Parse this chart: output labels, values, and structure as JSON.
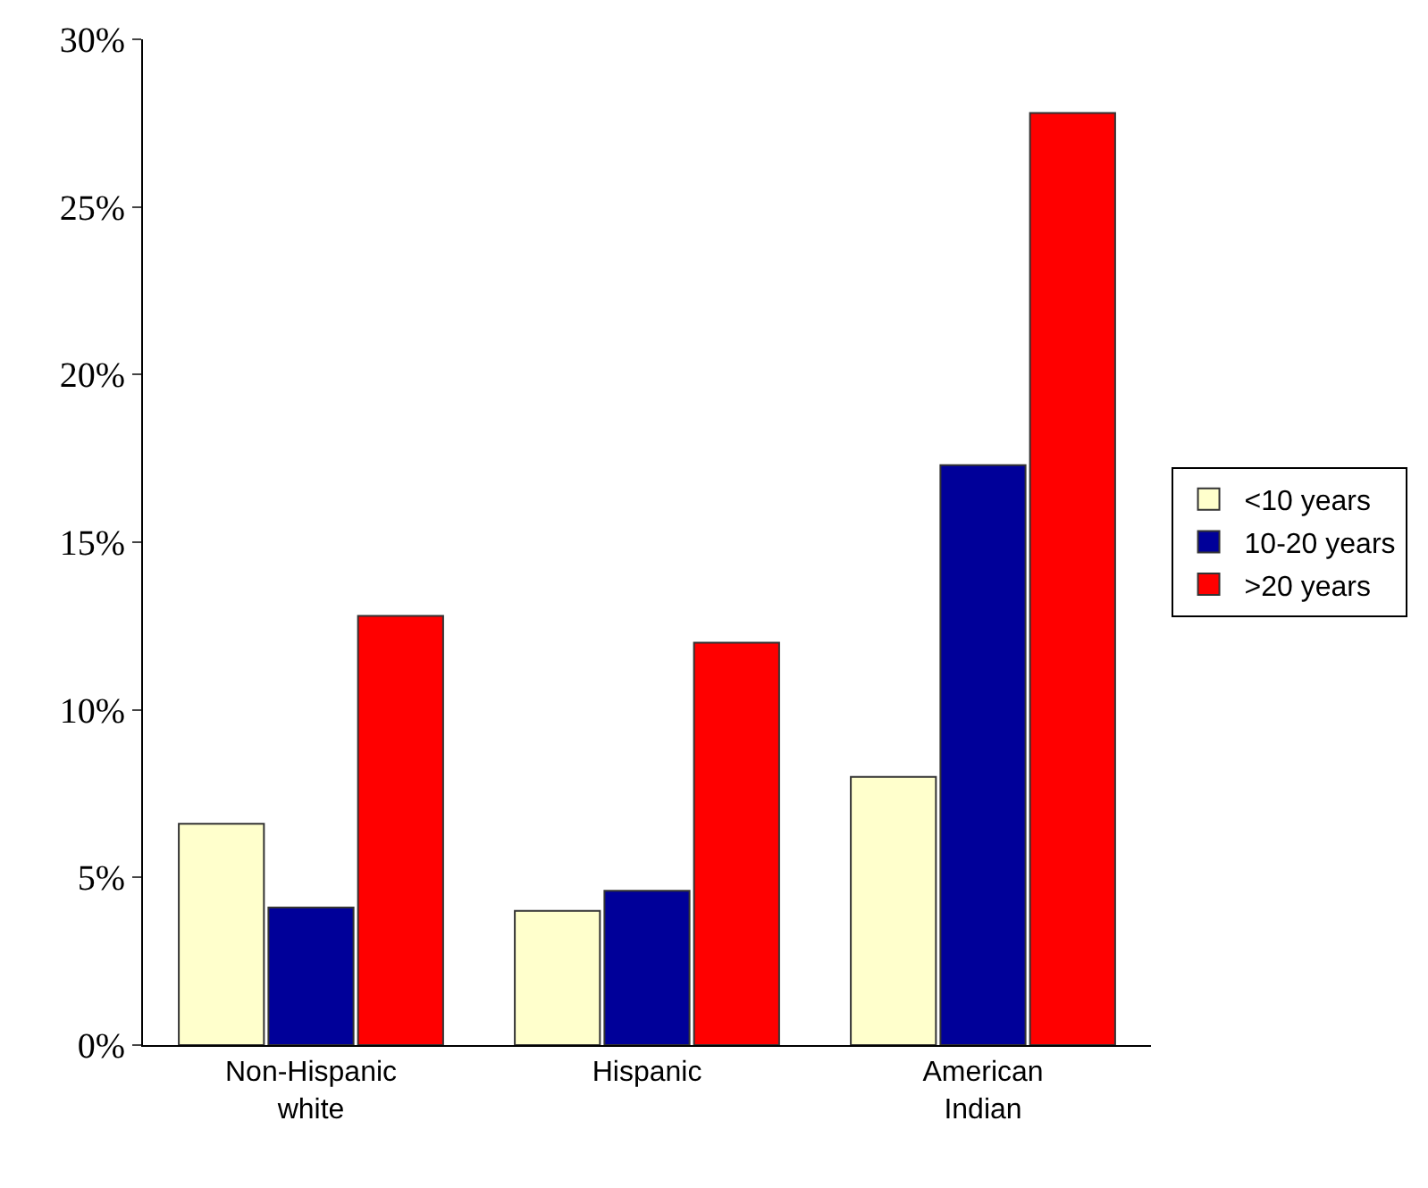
{
  "chart_data": {
    "type": "bar",
    "categories": [
      "Non-Hispanic white",
      "Hispanic",
      "American Indian"
    ],
    "series": [
      {
        "name": "<10 years",
        "color": "#ffffcc",
        "values": [
          6.6,
          4.0,
          8.0
        ]
      },
      {
        "name": "10-20 years",
        "color": "#000099",
        "values": [
          4.1,
          4.6,
          17.3
        ]
      },
      {
        "name": ">20 years",
        "color": "#ff0000",
        "values": [
          12.8,
          12.0,
          27.8
        ]
      }
    ],
    "ylim": [
      0,
      30
    ],
    "yticks": [
      {
        "value": 0,
        "label": "0%"
      },
      {
        "value": 5,
        "label": "5%"
      },
      {
        "value": 10,
        "label": "10%"
      },
      {
        "value": 15,
        "label": "15%"
      },
      {
        "value": 20,
        "label": "20%"
      },
      {
        "value": 25,
        "label": "25%"
      },
      {
        "value": 30,
        "label": "30%"
      }
    ],
    "legend": "right"
  }
}
